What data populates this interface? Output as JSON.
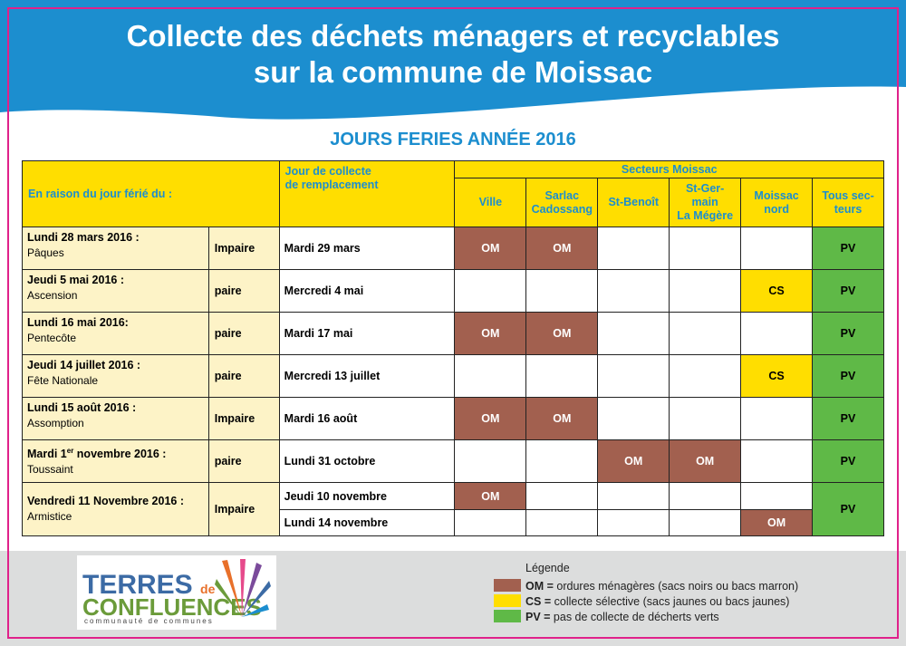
{
  "header": {
    "title_line1": "Collecte des déchets ménagers et recyclables",
    "title_line2": "sur la commune de Moissac",
    "subtitle": "JOURS FERIES ANNÉE 2016"
  },
  "colors": {
    "blue": "#1c8ecf",
    "om": "#a2604f",
    "cs": "#ffde00",
    "pv": "#5fb947",
    "frame": "#e0218a"
  },
  "table": {
    "col_reason": "En raison du jour férié du :",
    "col_replacement_1": "Jour de collecte",
    "col_replacement_2": "de remplacement",
    "sectors_group": "Secteurs Moissac",
    "sectors": [
      [
        "Ville"
      ],
      [
        "Sarlac",
        "Cadossang"
      ],
      [
        "St-Benoît"
      ],
      [
        "St-Ger-",
        "main",
        "La Mégère"
      ],
      [
        "Moissac",
        "nord"
      ],
      [
        "Tous sec-",
        "teurs"
      ]
    ],
    "rows": [
      {
        "date": "Lundi 28 mars 2016 :",
        "holiday": "Pâques",
        "parity": "Impaire",
        "replacement": "Mardi 29 mars",
        "cells": [
          "OM",
          "OM",
          "",
          "",
          "",
          "PV"
        ]
      },
      {
        "date": "Jeudi 5 mai 2016 :",
        "holiday": "Ascension",
        "parity": "paire",
        "replacement": "Mercredi 4 mai",
        "cells": [
          "",
          "",
          "",
          "",
          "CS",
          "PV"
        ]
      },
      {
        "date": "Lundi 16 mai 2016:",
        "holiday": "Pentecôte",
        "parity": "paire",
        "replacement": "Mardi 17 mai",
        "cells": [
          "OM",
          "OM",
          "",
          "",
          "",
          "PV"
        ]
      },
      {
        "date": "Jeudi 14 juillet 2016 :",
        "holiday": "Fête Nationale",
        "parity": "paire",
        "replacement": "Mercredi 13 juillet",
        "cells": [
          "",
          "",
          "",
          "",
          "CS",
          "PV"
        ]
      },
      {
        "date": "Lundi 15 août 2016 :",
        "holiday": "Assomption",
        "parity": "Impaire",
        "replacement": "Mardi 16 août",
        "cells": [
          "OM",
          "OM",
          "",
          "",
          "",
          "PV"
        ]
      },
      {
        "date_pre": "Mardi 1",
        "date_sup": "er",
        "date_post": " novembre 2016 :",
        "holiday": "Toussaint",
        "parity": "paire",
        "replacement": "Lundi 31 octobre",
        "cells": [
          "",
          "",
          "OM",
          "OM",
          "",
          "PV"
        ]
      }
    ],
    "last": {
      "date": "Vendredi 11 Novembre 2016 :",
      "holiday": "Armistice",
      "parity": "Impaire",
      "replacement_a": "Jeudi 10 novembre",
      "cells_a": [
        "OM",
        "",
        "",
        "",
        ""
      ],
      "replacement_b": "Lundi 14 novembre",
      "cells_b": [
        "",
        "",
        "",
        "",
        "OM"
      ],
      "all": "PV"
    }
  },
  "logo": {
    "line1_a": "TERRES",
    "line1_b": "de",
    "line2": "CONFLUENCES",
    "line3": "communauté de communes"
  },
  "legend": {
    "title": "Légende",
    "items": [
      {
        "code": "OM =",
        "text": " ordures ménagères (sacs noirs ou bacs marron)",
        "color": "#a2604f"
      },
      {
        "code": "CS =",
        "text": " collecte sélective (sacs jaunes ou bacs jaunes)",
        "color": "#ffde00"
      },
      {
        "code": "PV =",
        "text": "  pas de collecte de décherts verts",
        "color": "#5fb947"
      }
    ]
  }
}
